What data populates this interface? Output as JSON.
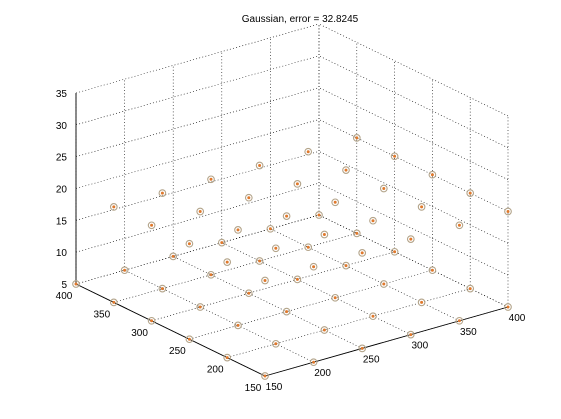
{
  "chart_data": {
    "type": "scatter",
    "title": "Gaussian, error = 32.8245",
    "xlabel": "",
    "ylabel": "",
    "zlabel": "",
    "xlim": [
      150,
      400
    ],
    "ylim": [
      150,
      400
    ],
    "zlim": [
      5,
      35
    ],
    "xticks": [
      "150",
      "200",
      "250",
      "300",
      "350",
      "400"
    ],
    "yticks": [
      "150",
      "200",
      "250",
      "300",
      "350",
      "400"
    ],
    "zticks": [
      "5",
      "10",
      "15",
      "20",
      "25",
      "30",
      "35"
    ],
    "grid": true,
    "view": "3d",
    "marker": "circle-dot",
    "marker_colors": {
      "ring": "#b3a48a",
      "center": "#e0792c"
    },
    "points": [
      {
        "x": 150,
        "y": 150,
        "z": 5
      },
      {
        "x": 200,
        "y": 150,
        "z": 5
      },
      {
        "x": 250,
        "y": 150,
        "z": 5
      },
      {
        "x": 300,
        "y": 150,
        "z": 5
      },
      {
        "x": 350,
        "y": 150,
        "z": 5
      },
      {
        "x": 400,
        "y": 150,
        "z": 5
      },
      {
        "x": 150,
        "y": 200,
        "z": 5
      },
      {
        "x": 200,
        "y": 200,
        "z": 5
      },
      {
        "x": 250,
        "y": 200,
        "z": 5
      },
      {
        "x": 300,
        "y": 200,
        "z": 5
      },
      {
        "x": 350,
        "y": 200,
        "z": 5
      },
      {
        "x": 400,
        "y": 200,
        "z": 5
      },
      {
        "x": 150,
        "y": 250,
        "z": 5
      },
      {
        "x": 200,
        "y": 250,
        "z": 5
      },
      {
        "x": 250,
        "y": 250,
        "z": 5
      },
      {
        "x": 300,
        "y": 250,
        "z": 5
      },
      {
        "x": 350,
        "y": 250,
        "z": 5
      },
      {
        "x": 400,
        "y": 250,
        "z": 5
      },
      {
        "x": 150,
        "y": 300,
        "z": 5
      },
      {
        "x": 200,
        "y": 300,
        "z": 5
      },
      {
        "x": 250,
        "y": 300,
        "z": 5
      },
      {
        "x": 300,
        "y": 300,
        "z": 5
      },
      {
        "x": 350,
        "y": 300,
        "z": 5
      },
      {
        "x": 400,
        "y": 300,
        "z": 5
      },
      {
        "x": 150,
        "y": 350,
        "z": 5
      },
      {
        "x": 200,
        "y": 350,
        "z": 5
      },
      {
        "x": 250,
        "y": 350,
        "z": 5
      },
      {
        "x": 300,
        "y": 350,
        "z": 5
      },
      {
        "x": 350,
        "y": 350,
        "z": 5
      },
      {
        "x": 400,
        "y": 350,
        "z": 5
      },
      {
        "x": 150,
        "y": 400,
        "z": 5
      },
      {
        "x": 200,
        "y": 400,
        "z": 5
      },
      {
        "x": 250,
        "y": 400,
        "z": 5
      },
      {
        "x": 300,
        "y": 400,
        "z": 5
      },
      {
        "x": 350,
        "y": 400,
        "z": 5
      },
      {
        "x": 400,
        "y": 400,
        "z": 5
      },
      {
        "x": 150,
        "y": 150,
        "z": 20
      },
      {
        "x": 200,
        "y": 150,
        "z": 20
      },
      {
        "x": 250,
        "y": 150,
        "z": 20
      },
      {
        "x": 300,
        "y": 150,
        "z": 20
      },
      {
        "x": 350,
        "y": 150,
        "z": 20
      },
      {
        "x": 400,
        "y": 150,
        "z": 20
      },
      {
        "x": 150,
        "y": 200,
        "z": 20
      },
      {
        "x": 200,
        "y": 200,
        "z": 20
      },
      {
        "x": 250,
        "y": 200,
        "z": 20
      },
      {
        "x": 300,
        "y": 200,
        "z": 20
      },
      {
        "x": 350,
        "y": 200,
        "z": 20
      },
      {
        "x": 400,
        "y": 200,
        "z": 20
      },
      {
        "x": 150,
        "y": 250,
        "z": 20
      },
      {
        "x": 200,
        "y": 250,
        "z": 20
      },
      {
        "x": 250,
        "y": 250,
        "z": 20
      },
      {
        "x": 300,
        "y": 250,
        "z": 20
      },
      {
        "x": 350,
        "y": 250,
        "z": 20
      },
      {
        "x": 400,
        "y": 250,
        "z": 20
      },
      {
        "x": 150,
        "y": 300,
        "z": 20
      },
      {
        "x": 200,
        "y": 300,
        "z": 20
      },
      {
        "x": 250,
        "y": 300,
        "z": 20
      },
      {
        "x": 300,
        "y": 300,
        "z": 20
      },
      {
        "x": 350,
        "y": 300,
        "z": 20
      },
      {
        "x": 400,
        "y": 300,
        "z": 20
      },
      {
        "x": 150,
        "y": 350,
        "z": 20
      },
      {
        "x": 200,
        "y": 350,
        "z": 20
      },
      {
        "x": 250,
        "y": 350,
        "z": 20
      },
      {
        "x": 300,
        "y": 350,
        "z": 20
      },
      {
        "x": 350,
        "y": 350,
        "z": 20
      },
      {
        "x": 400,
        "y": 350,
        "z": 20
      }
    ]
  }
}
